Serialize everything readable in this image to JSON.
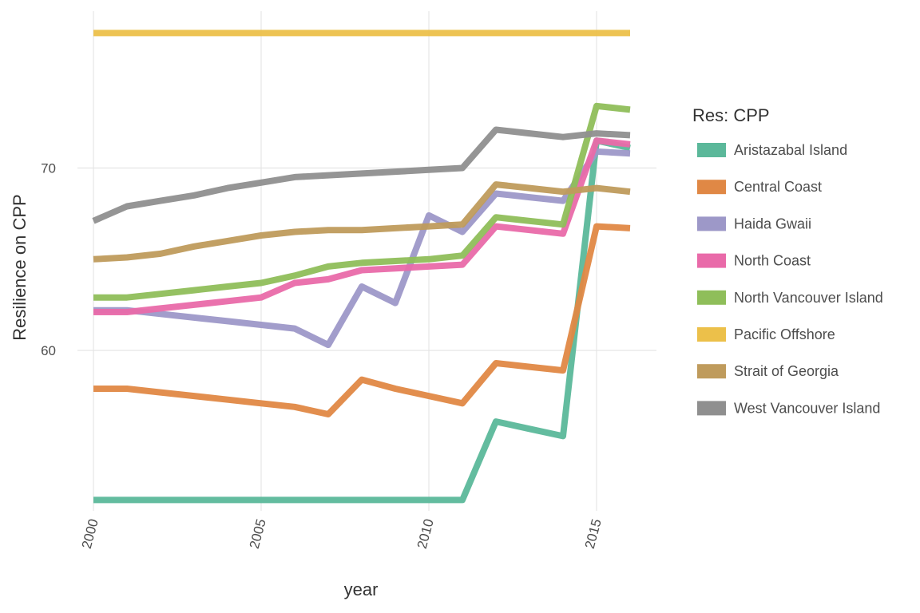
{
  "chart_data": {
    "type": "line",
    "xlabel": "year",
    "ylabel": "Resilience on CPP",
    "xlim": [
      2000,
      2016
    ],
    "ylim": [
      51.3,
      78.5
    ],
    "x_ticks": [
      2000,
      2005,
      2010,
      2015
    ],
    "y_ticks": [
      60,
      70
    ],
    "grid": true,
    "legend": {
      "title": "Res: CPP",
      "position": "right"
    },
    "x": [
      2000,
      2001,
      2002,
      2003,
      2004,
      2005,
      2006,
      2007,
      2008,
      2009,
      2010,
      2011,
      2012,
      2013,
      2014,
      2015,
      2016
    ],
    "series": [
      {
        "name": "Aristazabal Island",
        "color": "#5bb89a",
        "values": [
          51.8,
          51.8,
          51.8,
          51.8,
          51.8,
          51.8,
          51.8,
          51.8,
          51.8,
          51.8,
          51.8,
          51.8,
          56.1,
          55.7,
          55.3,
          71.5,
          71.1
        ]
      },
      {
        "name": "Central Coast",
        "color": "#e08845",
        "values": [
          57.9,
          57.9,
          57.7,
          57.5,
          57.3,
          57.1,
          56.9,
          56.5,
          58.4,
          57.9,
          57.5,
          57.1,
          59.3,
          59.1,
          58.9,
          66.8,
          66.7
        ]
      },
      {
        "name": "Haida Gwaii",
        "color": "#9d98c8",
        "values": [
          62.2,
          62.2,
          62.0,
          61.8,
          61.6,
          61.4,
          61.2,
          60.3,
          63.5,
          62.6,
          67.4,
          66.5,
          68.6,
          68.4,
          68.2,
          70.9,
          70.8
        ]
      },
      {
        "name": "North Coast",
        "color": "#e96aa9",
        "values": [
          62.1,
          62.1,
          62.3,
          62.5,
          62.7,
          62.9,
          63.7,
          63.9,
          64.4,
          64.5,
          64.6,
          64.7,
          66.8,
          66.6,
          66.4,
          71.5,
          71.3
        ]
      },
      {
        "name": "North Vancouver Island",
        "color": "#8fbe5a",
        "values": [
          62.9,
          62.9,
          63.1,
          63.3,
          63.5,
          63.7,
          64.1,
          64.6,
          64.8,
          64.9,
          65.0,
          65.2,
          67.3,
          67.1,
          66.9,
          73.4,
          73.2
        ]
      },
      {
        "name": "Pacific Offshore",
        "color": "#ecc04a",
        "values": [
          77.4,
          77.4,
          77.4,
          77.4,
          77.4,
          77.4,
          77.4,
          77.4,
          77.4,
          77.4,
          77.4,
          77.4,
          77.4,
          77.4,
          77.4,
          77.4,
          77.4
        ]
      },
      {
        "name": "Strait of Georgia",
        "color": "#bf9b5c",
        "values": [
          65.0,
          65.1,
          65.3,
          65.7,
          66.0,
          66.3,
          66.5,
          66.6,
          66.6,
          66.7,
          66.8,
          66.9,
          69.1,
          68.9,
          68.7,
          68.9,
          68.7
        ]
      },
      {
        "name": "West Vancouver Island",
        "color": "#8f8f8f",
        "values": [
          67.1,
          67.9,
          68.2,
          68.5,
          68.9,
          69.2,
          69.5,
          69.6,
          69.7,
          69.8,
          69.9,
          70.0,
          72.1,
          71.9,
          71.7,
          71.9,
          71.8
        ]
      }
    ]
  }
}
